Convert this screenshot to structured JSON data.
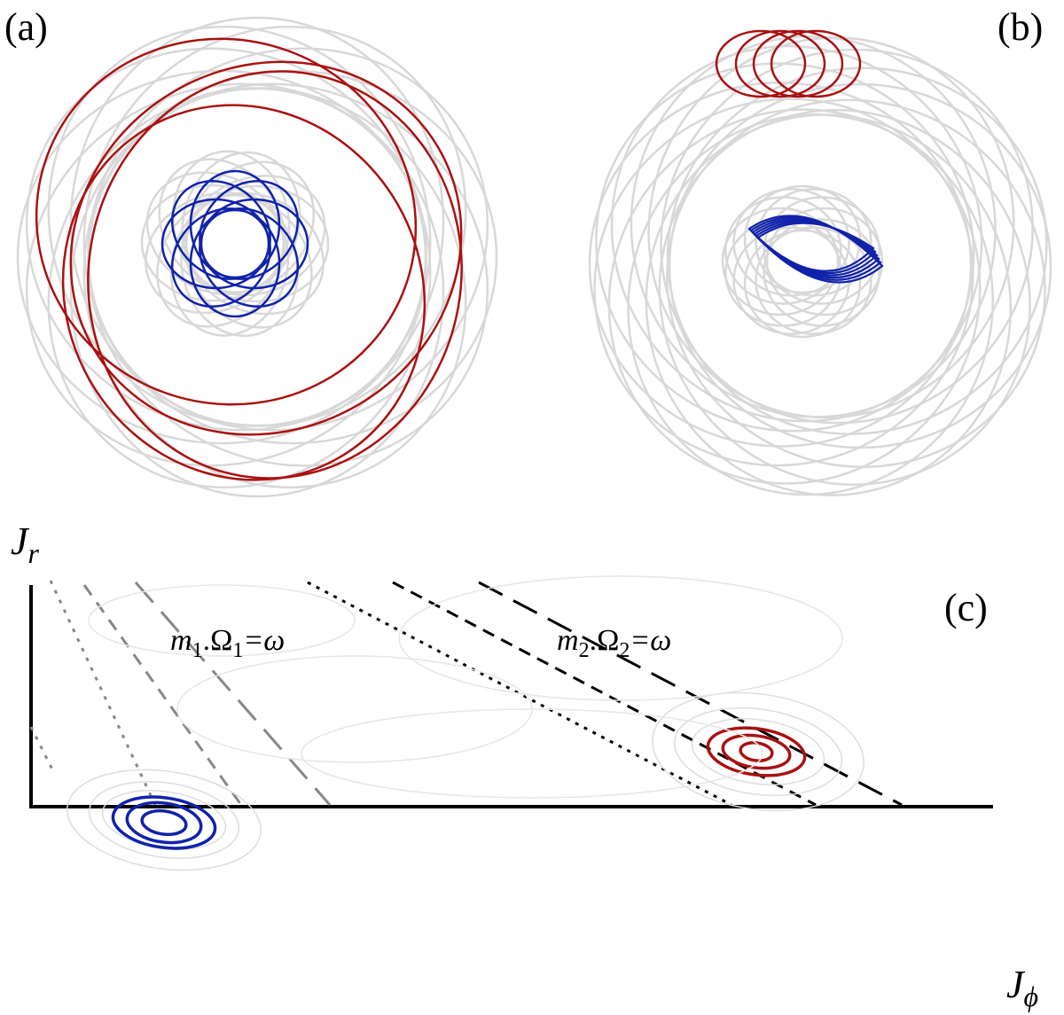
{
  "panels": {
    "a": {
      "label": "(a)"
    },
    "b": {
      "label": "(b)"
    },
    "c": {
      "label": "(c)"
    }
  },
  "axes": {
    "y": {
      "main": "J",
      "sub": "r"
    },
    "x": {
      "main": "J",
      "sub": "ϕ"
    }
  },
  "annotations": {
    "resonance_1": [
      "m",
      "1",
      ".Ω",
      "1",
      "=ω"
    ],
    "resonance_2": [
      "m",
      "2",
      ".Ω",
      "2",
      "=ω"
    ]
  }
}
